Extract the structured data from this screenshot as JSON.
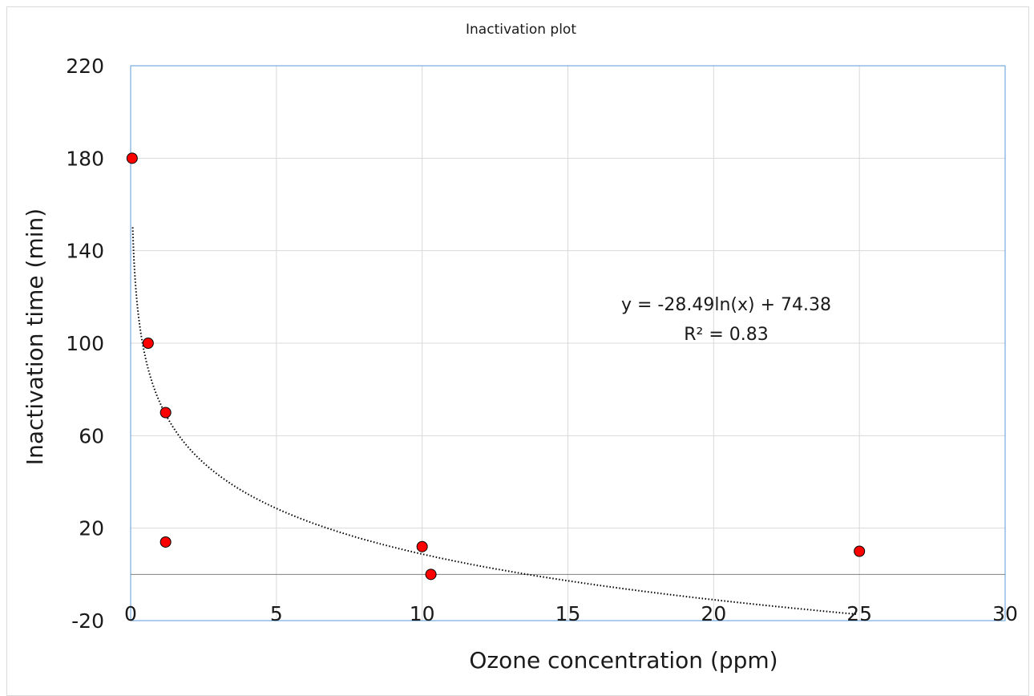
{
  "chart_data": {
    "type": "scatter",
    "title": "Inactivation plot",
    "xlabel": "Ozone concentration (ppm)",
    "ylabel": "Inactivation time (min)",
    "xlim": [
      0,
      30
    ],
    "ylim": [
      -20,
      220
    ],
    "x_ticks": [
      "0",
      "5",
      "10",
      "15",
      "20",
      "25",
      "30"
    ],
    "y_ticks": [
      "-20",
      "20",
      "60",
      "100",
      "140",
      "180",
      "220"
    ],
    "grid": true,
    "legend": "none",
    "marker_color": "#ff0000",
    "series": [
      {
        "x": [
          0.05,
          0.6,
          1.2,
          1.2,
          10.0,
          10.3,
          25.0
        ],
        "y": [
          180,
          100,
          70,
          14,
          12,
          0,
          10
        ]
      }
    ],
    "trendline": {
      "type": "logarithmic",
      "a": -28.49,
      "b": 74.38,
      "x_range": [
        0.07,
        24.9
      ],
      "style": "dotted",
      "color": "#000000"
    },
    "annotations": {
      "equation": "y = -28.49ln(x) + 74.38",
      "r_squared": "R² = 0.83"
    }
  }
}
